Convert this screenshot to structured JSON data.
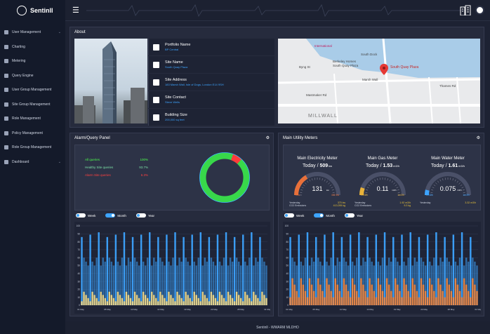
{
  "brand": {
    "name": "Sentinll"
  },
  "sidebar": {
    "items": [
      {
        "label": "User Management",
        "chevron": true
      },
      {
        "label": "Charting"
      },
      {
        "label": "Metering"
      },
      {
        "label": "Query Engine"
      },
      {
        "label": "User Group Management"
      },
      {
        "label": "Site Group Management"
      },
      {
        "label": "Role Management"
      },
      {
        "label": "Policy Management"
      },
      {
        "label": "Role Group Management"
      },
      {
        "label": "Dashboard",
        "chevron": true
      }
    ]
  },
  "about": {
    "title": "About",
    "rows": [
      {
        "title": "Portfolio Name",
        "value": "BP Central"
      },
      {
        "title": "Site Name",
        "value": "South Quay Plaza"
      },
      {
        "title": "Site Address",
        "value": "183 Marsh Wall, Isle of Dogs, London E14 9SH"
      },
      {
        "title": "Site Contact",
        "value": "Steve Wells"
      },
      {
        "title": "Building Size",
        "value": "200,000 sq feet"
      }
    ],
    "map": {
      "labels": [
        "International",
        "South Dock",
        "Berkeley Homes",
        "South Quay Plaza",
        "Marsh Wall",
        "South Quay Plaza",
        "MILLWALL",
        "Byng St",
        "Mastmaker Rd",
        "Thames Rd"
      ]
    }
  },
  "alarm": {
    "title": "Alarm/Query Panel",
    "stats": [
      {
        "label": "All queries",
        "value": "100%",
        "color": "#4cff4c"
      },
      {
        "label": "Healthy Site queries",
        "value": "93.7%",
        "color": "#7be0a6"
      },
      {
        "label": "Alarm Site queries",
        "value": "6.3%",
        "color": "#ff4040"
      }
    ],
    "donut": {
      "healthy": 93.7,
      "alarm": 6.3
    }
  },
  "toggles": [
    "Week",
    "Month",
    "Year"
  ],
  "meters": {
    "title": "Main Utility Meters",
    "items": [
      {
        "title": "Main Electricity Meter",
        "today_prefix": "Today / ",
        "today_value": "509",
        "today_unit": "kw",
        "reading": "131",
        "reading_unit": "kw",
        "low": "0kw",
        "high": "400 kw",
        "yesterday": "Yesterday",
        "emissions": "CO2 Emissions",
        "v1": "370 kw",
        "v2": "413.295 kg",
        "gauge_fraction": 0.33,
        "color": "#e8703a"
      },
      {
        "title": "Main Gas Meter",
        "today_prefix": "Today / ",
        "today_value": "1.53",
        "today_unit": "m3/h",
        "reading": "0.11",
        "reading_unit": "m3/h",
        "low": "0m3/h",
        "high": "1m3/h",
        "yesterday": "Yesterday",
        "emissions": "CO2 Emissions",
        "v1": "1.92 m3/h",
        "v2": "5.3 kg",
        "gauge_fraction": 0.11,
        "color": "#e8b23a"
      },
      {
        "title": "Main Water Meter",
        "today_prefix": "Today / ",
        "today_value": "1.61",
        "today_unit": "m3/h",
        "reading": "0.075",
        "reading_unit": "m3/h",
        "low": "0m3/h",
        "high": "1m3/h",
        "yesterday": "Yesterday",
        "emissions": "",
        "v1": "3.32 m3/h",
        "v2": "",
        "gauge_fraction": 0.075,
        "color": "#3da4ff"
      }
    ]
  },
  "chart_data": [
    {
      "type": "bar",
      "title": "",
      "ylim": [
        0,
        100
      ],
      "yticks": [
        "100",
        "90",
        "80",
        "70",
        "60",
        "50",
        "40",
        "30",
        "20",
        "10",
        "0"
      ],
      "xticks": [
        "01 May",
        "05 May",
        "10 May",
        "14 May",
        "19 May",
        "23 May",
        "28 May",
        "31 May"
      ],
      "series": [
        {
          "values_pattern": "blue bars ~85-90 recurring, background bars ~50"
        }
      ],
      "colors": [
        "#3da4ff",
        "#ffe38a"
      ]
    },
    {
      "type": "bar",
      "title": "",
      "ylim": [
        0,
        100
      ],
      "yticks": [
        "100",
        "90",
        "80",
        "70",
        "60",
        "50",
        "40",
        "30",
        "20",
        "10",
        "0"
      ],
      "xticks": [
        "01 May",
        "05 May",
        "10 May",
        "14 May",
        "19 May",
        "23 May",
        "28 May",
        "31 May"
      ],
      "colors": [
        "#3da4ff",
        "#ff8a3a"
      ]
    }
  ],
  "footer": {
    "text": "Sentinll - WWARM MLDHO"
  }
}
